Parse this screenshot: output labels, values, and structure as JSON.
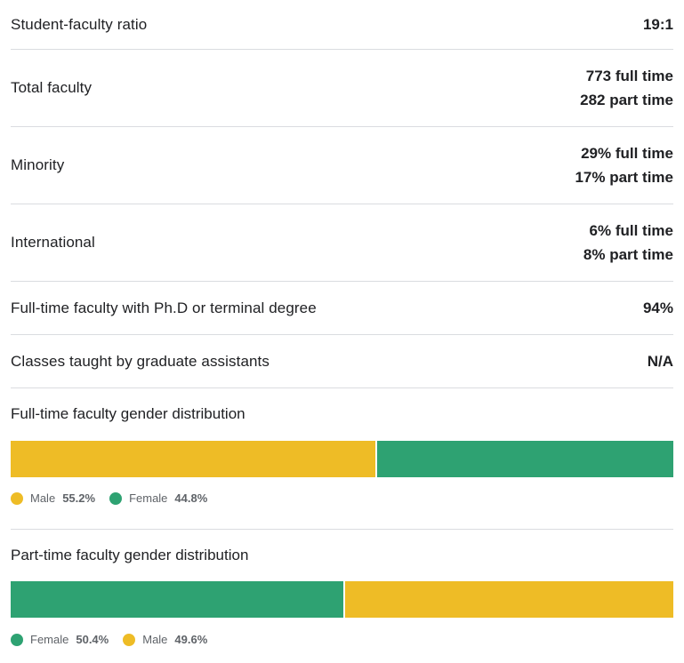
{
  "colors": {
    "male": "#eebc26",
    "female": "#2ea272",
    "divider": "#dadce0"
  },
  "stats": {
    "student_faculty_ratio": {
      "label": "Student-faculty ratio",
      "value": "19:1"
    },
    "total_faculty": {
      "label": "Total faculty",
      "full_time": "773 full time",
      "part_time": "282 part time"
    },
    "minority": {
      "label": "Minority",
      "full_time": "29% full time",
      "part_time": "17% part time"
    },
    "international": {
      "label": "International",
      "full_time": "6% full time",
      "part_time": "8% part time"
    },
    "phd": {
      "label": "Full-time faculty with Ph.D or terminal degree",
      "value": "94%"
    },
    "grad_assistants": {
      "label": "Classes taught by graduate assistants",
      "value": "N/A"
    }
  },
  "full_time_gender": {
    "title": "Full-time faculty gender distribution",
    "segments": [
      {
        "name": "Male",
        "pct_label": "55.2%",
        "pct": 55.2,
        "color": "#eebc26"
      },
      {
        "name": "Female",
        "pct_label": "44.8%",
        "pct": 44.8,
        "color": "#2ea272"
      }
    ]
  },
  "part_time_gender": {
    "title": "Part-time faculty gender distribution",
    "segments": [
      {
        "name": "Female",
        "pct_label": "50.4%",
        "pct": 50.4,
        "color": "#2ea272"
      },
      {
        "name": "Male",
        "pct_label": "49.6%",
        "pct": 49.6,
        "color": "#eebc26"
      }
    ]
  }
}
